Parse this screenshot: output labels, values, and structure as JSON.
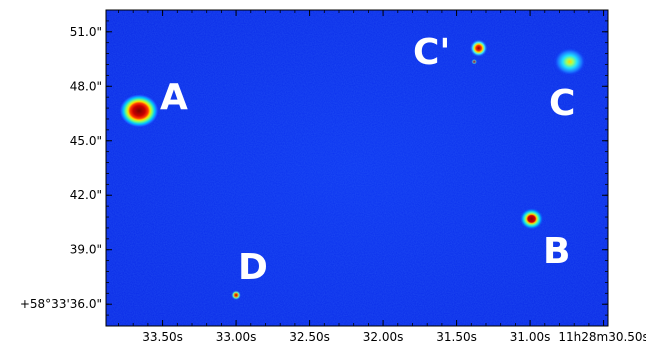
{
  "image": {
    "description_colormap": "jet",
    "background_color": "#0a2ff0"
  },
  "axes": {
    "y_ticks": [
      {
        "label": "51.0\"",
        "value": 51.0
      },
      {
        "label": "48.0\"",
        "value": 48.0
      },
      {
        "label": "45.0\"",
        "value": 45.0
      },
      {
        "label": "42.0\"",
        "value": 42.0
      },
      {
        "label": "39.0\"",
        "value": 39.0
      },
      {
        "label": "+58°33'36.0\"",
        "value": 36.0
      }
    ],
    "x_ticks": [
      {
        "label": "33.50s",
        "value": 33.5
      },
      {
        "label": "33.00s",
        "value": 33.0
      },
      {
        "label": "32.50s",
        "value": 32.5
      },
      {
        "label": "32.00s",
        "value": 32.0
      },
      {
        "label": "31.50s",
        "value": 31.5
      },
      {
        "label": "31.00s",
        "value": 31.0
      },
      {
        "label": "11h28m30.50s",
        "value": 30.5
      }
    ],
    "x_range": [
      33.885,
      30.47
    ],
    "y_range": [
      34.8,
      52.2
    ]
  },
  "sources": [
    {
      "name": "A",
      "label": "A",
      "ra": 33.66,
      "dec": 46.65,
      "size": "large"
    },
    {
      "name": "B",
      "label": "B",
      "ra": 30.99,
      "dec": 40.7,
      "size": "medium"
    },
    {
      "name": "C",
      "label": "C",
      "ra": 30.73,
      "dec": 49.35,
      "size": "diffuse"
    },
    {
      "name": "C-prime",
      "label": "C'",
      "ra": 31.35,
      "dec": 50.1,
      "size": "small"
    },
    {
      "name": "D",
      "label": "D",
      "ra": 33.0,
      "dec": 36.5,
      "size": "tiny"
    }
  ],
  "labels_positions_note": "",
  "label_text": {
    "A": "A",
    "B": "B",
    "C": "C",
    "Cp": "C'",
    "D": "D"
  }
}
